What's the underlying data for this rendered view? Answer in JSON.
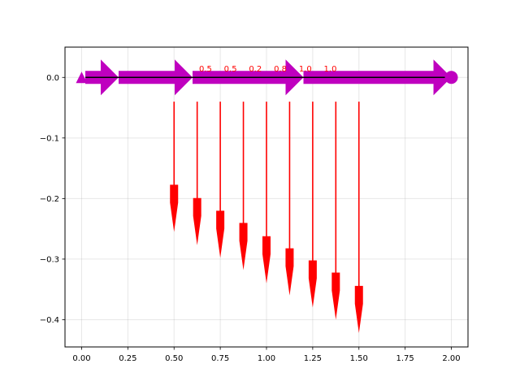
{
  "chart_data": {
    "type": "beam-diagram",
    "xlim": [
      -0.09,
      2.09
    ],
    "ylim": [
      -0.445,
      0.05
    ],
    "x_ticks": [
      0.0,
      0.25,
      0.5,
      0.75,
      1.0,
      1.25,
      1.5,
      1.75,
      2.0
    ],
    "x_tick_labels": [
      "0.00",
      "0.25",
      "0.50",
      "0.75",
      "1.00",
      "1.25",
      "1.50",
      "1.75",
      "2.00"
    ],
    "y_ticks": [
      0.0,
      -0.1,
      -0.2,
      -0.3,
      -0.4
    ],
    "y_tick_labels": [
      "0.0",
      "−0.1",
      "−0.2",
      "−0.3",
      "−0.4"
    ],
    "grid": true,
    "beam": {
      "x_start": 0.02,
      "x_end": 1.98,
      "y": 0.0
    },
    "supports": [
      {
        "type": "pin",
        "x": 0.0
      },
      {
        "type": "roller",
        "x": 2.0
      }
    ],
    "distributed_arrows": [
      {
        "x_start": 0.02,
        "x_end": 0.2
      },
      {
        "x_start": 0.2,
        "x_end": 0.6
      },
      {
        "x_start": 0.6,
        "x_end": 1.2
      },
      {
        "x_start": 1.2,
        "x_end": 2.0
      }
    ],
    "point_loads": [
      {
        "x": 0.5,
        "y_start": -0.04,
        "y_tip": -0.255
      },
      {
        "x": 0.625,
        "y_start": -0.04,
        "y_tip": -0.277
      },
      {
        "x": 0.75,
        "y_start": -0.04,
        "y_tip": -0.298
      },
      {
        "x": 0.875,
        "y_start": -0.04,
        "y_tip": -0.318
      },
      {
        "x": 1.0,
        "y_start": -0.04,
        "y_tip": -0.34
      },
      {
        "x": 1.125,
        "y_start": -0.04,
        "y_tip": -0.36
      },
      {
        "x": 1.25,
        "y_start": -0.04,
        "y_tip": -0.38
      },
      {
        "x": 1.375,
        "y_start": -0.04,
        "y_tip": -0.4
      },
      {
        "x": 1.5,
        "y_start": -0.04,
        "y_tip": -0.422
      }
    ],
    "value_labels": [
      {
        "text": "0.5",
        "x": 0.635,
        "y": 0.01
      },
      {
        "text": "0.5",
        "x": 0.77,
        "y": 0.01
      },
      {
        "text": "0.2",
        "x": 0.905,
        "y": 0.01
      },
      {
        "text": "0.8",
        "x": 1.04,
        "y": 0.01
      },
      {
        "text": "1.0",
        "x": 1.175,
        "y": 0.01
      },
      {
        "text": "1.0",
        "x": 1.31,
        "y": 0.01
      }
    ],
    "colors": {
      "distributed": "#bf00bf",
      "point_load": "#ff0000",
      "beam_line": "#000000",
      "label": "#ff0000",
      "grid": "#b0b0b0"
    }
  }
}
